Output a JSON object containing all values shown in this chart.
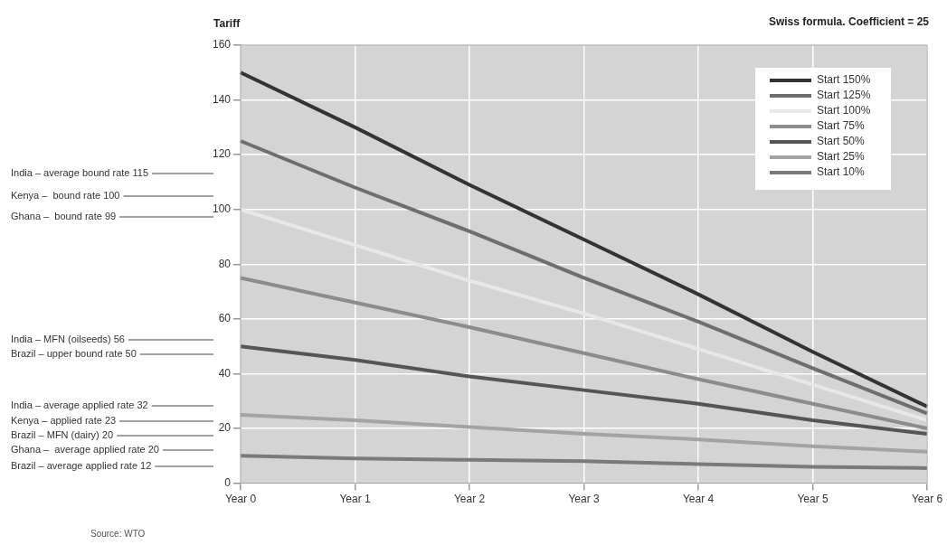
{
  "chart_data": {
    "type": "line",
    "title": "Swiss formula. Coefficient = 25",
    "ylabel": "Tariff",
    "categories": [
      "Year 0",
      "Year 1",
      "Year 2",
      "Year 3",
      "Year 4",
      "Year 5",
      "Year 6"
    ],
    "ylim": [
      0,
      160
    ],
    "yticks": [
      0,
      20,
      40,
      60,
      80,
      100,
      120,
      140,
      160
    ],
    "grid": true,
    "legend": "top right",
    "marker": "none",
    "line_style": "solid",
    "series": [
      {
        "name": "Start 150%",
        "color": "#333333",
        "values": [
          150,
          130,
          109,
          89,
          69,
          48,
          28
        ]
      },
      {
        "name": "Start 125%",
        "color": "#6e6e6e",
        "values": [
          125,
          108,
          92,
          75,
          59,
          42,
          25.5
        ]
      },
      {
        "name": "Start 100%",
        "color": "#e8e8e8",
        "values": [
          100,
          87,
          74,
          62,
          49,
          36,
          23
        ]
      },
      {
        "name": "Start 75%",
        "color": "#8c8c8c",
        "values": [
          75,
          66,
          57,
          47.5,
          38,
          29,
          20
        ]
      },
      {
        "name": "Start 50%",
        "color": "#555555",
        "values": [
          50,
          45,
          39,
          34,
          29,
          23,
          18
        ]
      },
      {
        "name": "Start 25%",
        "color": "#a3a3a3",
        "values": [
          25,
          23,
          20.5,
          18,
          16,
          13.5,
          11.5
        ]
      },
      {
        "name": "Start 10%",
        "color": "#7a7a7a",
        "values": [
          10,
          9,
          8.5,
          8,
          7,
          6,
          5.5
        ]
      }
    ],
    "annotations": [
      "India – average bound rate 115",
      "Kenya –  bound rate 100",
      "Ghana –  bound rate 99",
      "India – MFN (oilseeds) 56",
      "Brazil – upper bound rate 50",
      "India – average applied rate 32",
      "Kenya – applied rate 23",
      "Brazil – MFN (dairy) 20",
      "Ghana –  average applied rate 20",
      "Brazil – average applied rate 12",
      "Source: WTO"
    ]
  }
}
